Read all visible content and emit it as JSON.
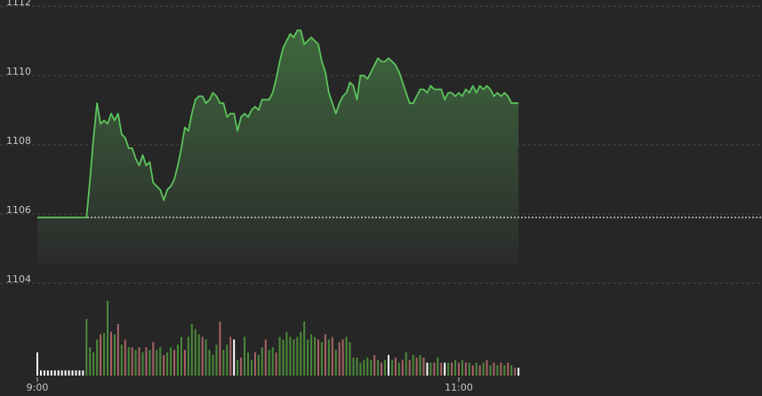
{
  "chart_data": {
    "type": "area",
    "title": "",
    "xlabel": "",
    "ylabel": "",
    "ylim": [
      1104,
      1112
    ],
    "yticks": [
      1104,
      1106,
      1108,
      1110,
      1112
    ],
    "xticks": [
      {
        "label": "9:00",
        "minute": 0
      },
      {
        "label": "11:00",
        "minute": 120
      }
    ],
    "x_unit": "minutes after 9:00",
    "reference_price": 1105.9,
    "grid": true,
    "colors": {
      "line": "#5cc25c",
      "fill_top": "#3f6b3f",
      "up_volume": "#4a8a3a",
      "down_volume": "#a86464",
      "neutral_volume": "#ffffff",
      "grid": "#4a4a4a",
      "reference_line": "#e0e0e0"
    },
    "price": [
      [
        0,
        1105.9
      ],
      [
        14,
        1105.9
      ],
      [
        15,
        1107.0
      ],
      [
        16,
        1108.2
      ],
      [
        17,
        1109.2
      ],
      [
        18,
        1108.6
      ],
      [
        19,
        1108.7
      ],
      [
        20,
        1108.6
      ],
      [
        21,
        1108.9
      ],
      [
        22,
        1108.7
      ],
      [
        23,
        1108.9
      ],
      [
        24,
        1108.3
      ],
      [
        25,
        1108.2
      ],
      [
        26,
        1107.9
      ],
      [
        27,
        1107.9
      ],
      [
        28,
        1107.6
      ],
      [
        29,
        1107.4
      ],
      [
        30,
        1107.7
      ],
      [
        31,
        1107.4
      ],
      [
        32,
        1107.5
      ],
      [
        33,
        1106.9
      ],
      [
        34,
        1106.8
      ],
      [
        35,
        1106.7
      ],
      [
        36,
        1106.4
      ],
      [
        37,
        1106.7
      ],
      [
        38,
        1106.8
      ],
      [
        39,
        1107.0
      ],
      [
        40,
        1107.4
      ],
      [
        41,
        1107.9
      ],
      [
        42,
        1108.5
      ],
      [
        43,
        1108.4
      ],
      [
        44,
        1108.9
      ],
      [
        45,
        1109.3
      ],
      [
        46,
        1109.4
      ],
      [
        47,
        1109.4
      ],
      [
        48,
        1109.2
      ],
      [
        49,
        1109.3
      ],
      [
        50,
        1109.5
      ],
      [
        51,
        1109.4
      ],
      [
        52,
        1109.2
      ],
      [
        53,
        1109.2
      ],
      [
        54,
        1108.8
      ],
      [
        55,
        1108.9
      ],
      [
        56,
        1108.9
      ],
      [
        57,
        1108.4
      ],
      [
        58,
        1108.8
      ],
      [
        59,
        1108.9
      ],
      [
        60,
        1108.8
      ],
      [
        61,
        1109.0
      ],
      [
        62,
        1109.1
      ],
      [
        63,
        1109.0
      ],
      [
        64,
        1109.3
      ],
      [
        65,
        1109.3
      ],
      [
        66,
        1109.3
      ],
      [
        67,
        1109.5
      ],
      [
        68,
        1109.9
      ],
      [
        69,
        1110.4
      ],
      [
        70,
        1110.8
      ],
      [
        71,
        1111.0
      ],
      [
        72,
        1111.2
      ],
      [
        73,
        1111.1
      ],
      [
        74,
        1111.3
      ],
      [
        75,
        1111.3
      ],
      [
        76,
        1110.9
      ],
      [
        77,
        1111.0
      ],
      [
        78,
        1111.1
      ],
      [
        79,
        1111.0
      ],
      [
        80,
        1110.9
      ],
      [
        81,
        1110.4
      ],
      [
        82,
        1110.1
      ],
      [
        83,
        1109.5
      ],
      [
        84,
        1109.2
      ],
      [
        85,
        1108.9
      ],
      [
        86,
        1109.2
      ],
      [
        87,
        1109.4
      ],
      [
        88,
        1109.5
      ],
      [
        89,
        1109.8
      ],
      [
        90,
        1109.7
      ],
      [
        91,
        1109.3
      ],
      [
        92,
        1110.0
      ],
      [
        93,
        1110.0
      ],
      [
        94,
        1109.9
      ],
      [
        95,
        1110.1
      ],
      [
        96,
        1110.3
      ],
      [
        97,
        1110.5
      ],
      [
        98,
        1110.4
      ],
      [
        99,
        1110.4
      ],
      [
        100,
        1110.5
      ],
      [
        101,
        1110.4
      ],
      [
        102,
        1110.3
      ],
      [
        103,
        1110.1
      ],
      [
        104,
        1109.8
      ],
      [
        105,
        1109.5
      ],
      [
        106,
        1109.2
      ],
      [
        107,
        1109.2
      ],
      [
        108,
        1109.4
      ],
      [
        109,
        1109.6
      ],
      [
        110,
        1109.6
      ],
      [
        111,
        1109.5
      ],
      [
        112,
        1109.7
      ],
      [
        113,
        1109.6
      ],
      [
        114,
        1109.6
      ],
      [
        115,
        1109.6
      ],
      [
        116,
        1109.3
      ],
      [
        117,
        1109.5
      ],
      [
        118,
        1109.5
      ],
      [
        119,
        1109.4
      ],
      [
        120,
        1109.5
      ],
      [
        121,
        1109.4
      ],
      [
        122,
        1109.6
      ],
      [
        123,
        1109.5
      ],
      [
        124,
        1109.7
      ],
      [
        125,
        1109.5
      ],
      [
        126,
        1109.7
      ],
      [
        127,
        1109.6
      ],
      [
        128,
        1109.7
      ],
      [
        129,
        1109.6
      ],
      [
        130,
        1109.4
      ],
      [
        131,
        1109.5
      ],
      [
        132,
        1109.4
      ],
      [
        133,
        1109.5
      ],
      [
        134,
        1109.4
      ],
      [
        135,
        1109.2
      ],
      [
        136,
        1109.2
      ],
      [
        137,
        1109.2
      ]
    ],
    "volume": [
      [
        0,
        "n",
        18
      ],
      [
        1,
        "n",
        4
      ],
      [
        2,
        "n",
        4
      ],
      [
        3,
        "n",
        4
      ],
      [
        4,
        "n",
        4
      ],
      [
        5,
        "n",
        4
      ],
      [
        6,
        "n",
        4
      ],
      [
        7,
        "n",
        4
      ],
      [
        8,
        "n",
        4
      ],
      [
        9,
        "n",
        4
      ],
      [
        10,
        "n",
        4
      ],
      [
        11,
        "n",
        4
      ],
      [
        12,
        "n",
        4
      ],
      [
        13,
        "n",
        4
      ],
      [
        14,
        "u",
        44
      ],
      [
        15,
        "u",
        22
      ],
      [
        16,
        "u",
        18
      ],
      [
        17,
        "u",
        28
      ],
      [
        18,
        "d",
        32
      ],
      [
        19,
        "u",
        33
      ],
      [
        20,
        "u",
        58
      ],
      [
        21,
        "d",
        34
      ],
      [
        22,
        "u",
        32
      ],
      [
        23,
        "d",
        40
      ],
      [
        24,
        "u",
        24
      ],
      [
        25,
        "d",
        28
      ],
      [
        26,
        "u",
        22
      ],
      [
        27,
        "d",
        22
      ],
      [
        28,
        "u",
        20
      ],
      [
        29,
        "d",
        22
      ],
      [
        30,
        "u",
        18
      ],
      [
        31,
        "d",
        22
      ],
      [
        32,
        "u",
        20
      ],
      [
        33,
        "d",
        26
      ],
      [
        34,
        "u",
        20
      ],
      [
        35,
        "u",
        22
      ],
      [
        36,
        "d",
        16
      ],
      [
        37,
        "u",
        18
      ],
      [
        38,
        "u",
        22
      ],
      [
        39,
        "d",
        20
      ],
      [
        40,
        "u",
        24
      ],
      [
        41,
        "u",
        30
      ],
      [
        42,
        "d",
        20
      ],
      [
        43,
        "u",
        30
      ],
      [
        44,
        "u",
        40
      ],
      [
        45,
        "u",
        36
      ],
      [
        46,
        "u",
        32
      ],
      [
        47,
        "d",
        30
      ],
      [
        48,
        "u",
        28
      ],
      [
        49,
        "u",
        20
      ],
      [
        50,
        "u",
        16
      ],
      [
        51,
        "u",
        24
      ],
      [
        52,
        "d",
        42
      ],
      [
        53,
        "u",
        20
      ],
      [
        54,
        "u",
        24
      ],
      [
        55,
        "d",
        30
      ],
      [
        56,
        "n",
        28
      ],
      [
        57,
        "u",
        12
      ],
      [
        58,
        "d",
        14
      ],
      [
        59,
        "u",
        30
      ],
      [
        60,
        "u",
        18
      ],
      [
        61,
        "u",
        12
      ],
      [
        62,
        "d",
        18
      ],
      [
        63,
        "u",
        16
      ],
      [
        64,
        "u",
        22
      ],
      [
        65,
        "d",
        28
      ],
      [
        66,
        "u",
        20
      ],
      [
        67,
        "u",
        22
      ],
      [
        68,
        "d",
        18
      ],
      [
        69,
        "u",
        30
      ],
      [
        70,
        "u",
        28
      ],
      [
        71,
        "u",
        34
      ],
      [
        72,
        "u",
        30
      ],
      [
        73,
        "u",
        28
      ],
      [
        74,
        "u",
        30
      ],
      [
        75,
        "u",
        34
      ],
      [
        76,
        "u",
        42
      ],
      [
        77,
        "u",
        28
      ],
      [
        78,
        "u",
        32
      ],
      [
        79,
        "u",
        30
      ],
      [
        80,
        "d",
        28
      ],
      [
        81,
        "u",
        26
      ],
      [
        82,
        "d",
        32
      ],
      [
        83,
        "u",
        28
      ],
      [
        84,
        "d",
        30
      ],
      [
        85,
        "u",
        20
      ],
      [
        86,
        "d",
        26
      ],
      [
        87,
        "d",
        28
      ],
      [
        88,
        "u",
        30
      ],
      [
        89,
        "u",
        26
      ],
      [
        90,
        "u",
        14
      ],
      [
        91,
        "u",
        14
      ],
      [
        92,
        "u",
        10
      ],
      [
        93,
        "u",
        12
      ],
      [
        94,
        "u",
        14
      ],
      [
        95,
        "u",
        12
      ],
      [
        96,
        "d",
        16
      ],
      [
        97,
        "u",
        12
      ],
      [
        98,
        "d",
        10
      ],
      [
        99,
        "u",
        12
      ],
      [
        100,
        "n",
        16
      ],
      [
        101,
        "u",
        12
      ],
      [
        102,
        "d",
        14
      ],
      [
        103,
        "u",
        10
      ],
      [
        104,
        "d",
        12
      ],
      [
        105,
        "u",
        18
      ],
      [
        106,
        "d",
        12
      ],
      [
        107,
        "u",
        16
      ],
      [
        108,
        "d",
        14
      ],
      [
        109,
        "u",
        16
      ],
      [
        110,
        "d",
        14
      ],
      [
        111,
        "n",
        10
      ],
      [
        112,
        "u",
        10
      ],
      [
        113,
        "d",
        10
      ],
      [
        114,
        "u",
        14
      ],
      [
        115,
        "d",
        10
      ],
      [
        116,
        "n",
        10
      ],
      [
        117,
        "u",
        10
      ],
      [
        118,
        "d",
        10
      ],
      [
        119,
        "u",
        12
      ],
      [
        120,
        "d",
        10
      ],
      [
        121,
        "u",
        12
      ],
      [
        122,
        "d",
        10
      ],
      [
        123,
        "u",
        10
      ],
      [
        124,
        "d",
        8
      ],
      [
        125,
        "u",
        10
      ],
      [
        126,
        "d",
        8
      ],
      [
        127,
        "u",
        10
      ],
      [
        128,
        "d",
        12
      ],
      [
        129,
        "u",
        8
      ],
      [
        130,
        "d",
        10
      ],
      [
        131,
        "u",
        8
      ],
      [
        132,
        "d",
        10
      ],
      [
        133,
        "u",
        8
      ],
      [
        134,
        "d",
        10
      ],
      [
        135,
        "u",
        8
      ],
      [
        136,
        "d",
        6
      ],
      [
        137,
        "n",
        6
      ]
    ]
  }
}
